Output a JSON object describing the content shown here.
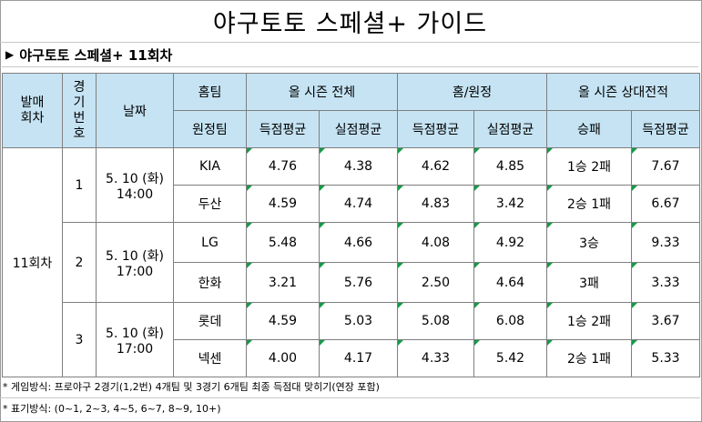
{
  "title": "야구토토 스페셜+ 가이드",
  "subtitle": {
    "arrow_icon": "▶",
    "text": "야구토토 스페셜+ 11회차"
  },
  "headers": {
    "round": "발매\n회차",
    "game_no": "경\n기\n번\n호",
    "date": "날짜",
    "home_team": "홈팀",
    "away_team": "원정팀",
    "season_total": "올 시즌 전체",
    "home_away": "홈/원정",
    "season_h2h": "올 시즌 상대전적",
    "avg_scored": "득점평균",
    "avg_allowed": "실점평균",
    "win_loss": "승패"
  },
  "round": "11회차",
  "games": [
    {
      "no": "1",
      "date": "5. 10 (화)",
      "time": "14:00",
      "teams": [
        {
          "name": "KIA",
          "season_scored": "4.76",
          "season_allowed": "4.38",
          "ha_scored": "4.62",
          "ha_allowed": "4.85",
          "h2h_record": "1승 2패",
          "h2h_scored": "7.67"
        },
        {
          "name": "두산",
          "season_scored": "4.59",
          "season_allowed": "4.74",
          "ha_scored": "4.83",
          "ha_allowed": "3.42",
          "h2h_record": "2승 1패",
          "h2h_scored": "6.67"
        }
      ]
    },
    {
      "no": "2",
      "date": "5. 10 (화)",
      "time": "17:00",
      "teams": [
        {
          "name": "LG",
          "season_scored": "5.48",
          "season_allowed": "4.66",
          "ha_scored": "4.08",
          "ha_allowed": "4.92",
          "h2h_record": "3승",
          "h2h_scored": "9.33"
        },
        {
          "name": "한화",
          "season_scored": "3.21",
          "season_allowed": "5.76",
          "ha_scored": "2.50",
          "ha_allowed": "4.64",
          "h2h_record": "3패",
          "h2h_scored": "3.33"
        }
      ]
    },
    {
      "no": "3",
      "date": "5. 10 (화)",
      "time": "17:00",
      "teams": [
        {
          "name": "롯데",
          "season_scored": "4.59",
          "season_allowed": "5.03",
          "ha_scored": "5.08",
          "ha_allowed": "6.08",
          "h2h_record": "1승 2패",
          "h2h_scored": "3.67"
        },
        {
          "name": "넥센",
          "season_scored": "4.00",
          "season_allowed": "4.17",
          "ha_scored": "4.33",
          "ha_allowed": "5.42",
          "h2h_record": "2승 1패",
          "h2h_scored": "5.33"
        }
      ]
    }
  ],
  "footnotes": [
    "* 게임방식: 프로야구 2경기(1,2번) 4개팀 및 3경기 6개팀 최종 득점대 맞히기(연장 포함)",
    "* 표기방식: (0~1, 2~3, 4~5, 6~7, 8~9, 10+)"
  ],
  "colors": {
    "header_bg": "#c5e3f3",
    "corner_mark": "#169a48",
    "border": "#7f7f7f"
  }
}
